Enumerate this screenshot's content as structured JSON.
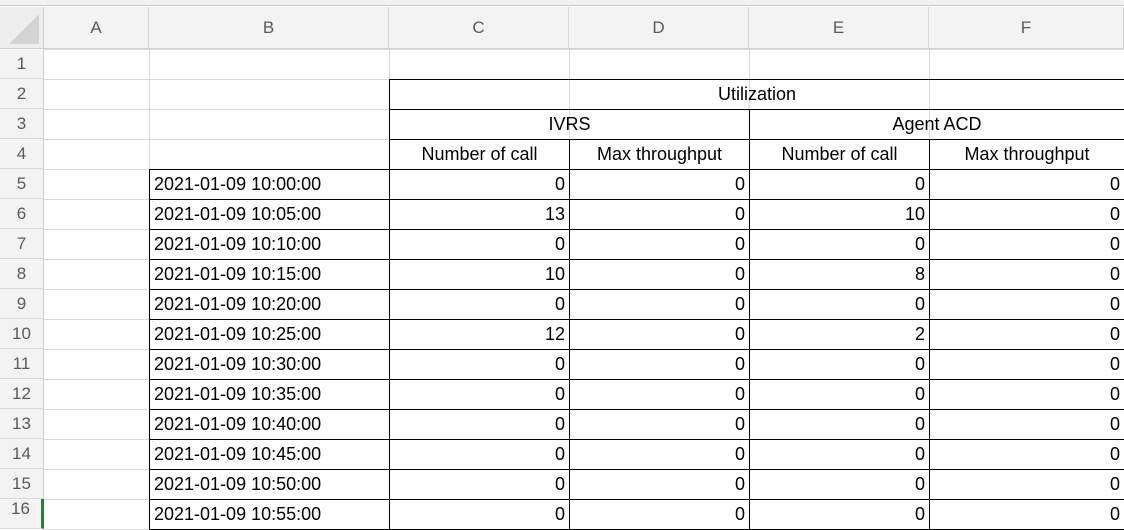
{
  "columns": [
    "A",
    "B",
    "C",
    "D",
    "E",
    "F"
  ],
  "rows": [
    "1",
    "2",
    "3",
    "4",
    "5",
    "6",
    "7",
    "8",
    "9",
    "10",
    "11",
    "12",
    "13",
    "14",
    "15",
    "16"
  ],
  "sheet": {
    "utilization_header": "Utilization",
    "group_ivrs": "IVRS",
    "group_agent": "Agent ACD",
    "sub_headers": [
      "Number of call",
      "Max throughput",
      "Number of call",
      "Max throughput"
    ],
    "data_rows": [
      {
        "time": "2021-01-09 10:00:00",
        "c": "0",
        "d": "0",
        "e": "0",
        "f": "0"
      },
      {
        "time": "2021-01-09 10:05:00",
        "c": "13",
        "d": "0",
        "e": "10",
        "f": "0"
      },
      {
        "time": "2021-01-09 10:10:00",
        "c": "0",
        "d": "0",
        "e": "0",
        "f": "0"
      },
      {
        "time": "2021-01-09 10:15:00",
        "c": "10",
        "d": "0",
        "e": "8",
        "f": "0"
      },
      {
        "time": "2021-01-09 10:20:00",
        "c": "0",
        "d": "0",
        "e": "0",
        "f": "0"
      },
      {
        "time": "2021-01-09 10:25:00",
        "c": "12",
        "d": "0",
        "e": "2",
        "f": "0"
      },
      {
        "time": "2021-01-09 10:30:00",
        "c": "0",
        "d": "0",
        "e": "0",
        "f": "0"
      },
      {
        "time": "2021-01-09 10:35:00",
        "c": "0",
        "d": "0",
        "e": "0",
        "f": "0"
      },
      {
        "time": "2021-01-09 10:40:00",
        "c": "0",
        "d": "0",
        "e": "0",
        "f": "0"
      },
      {
        "time": "2021-01-09 10:45:00",
        "c": "0",
        "d": "0",
        "e": "0",
        "f": "0"
      },
      {
        "time": "2021-01-09 10:50:00",
        "c": "0",
        "d": "0",
        "e": "0",
        "f": "0"
      },
      {
        "time": "2021-01-09 10:55:00",
        "c": "0",
        "d": "0",
        "e": "0",
        "f": "0"
      }
    ]
  }
}
